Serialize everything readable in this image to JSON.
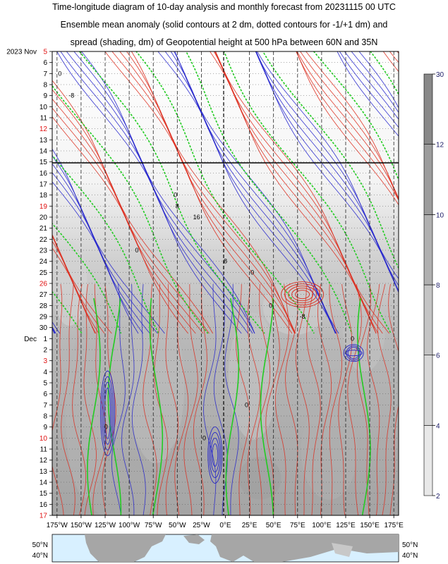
{
  "title": {
    "line1": "Time-longitude diagram of 10-day analysis and monthly forecast from 20231115 00 UTC",
    "line2": "Ensemble mean anomaly (solid contours at 2 dm, dotted contours for -1/+1 dm) and",
    "line3": "spread (shading, dm) of Geopotential height at 500 hPa between 60N and 35N"
  },
  "chart_data": {
    "type": "heatmap",
    "variable": "Geopotential height at 500 hPa",
    "init_time": "20231115 00 UTC",
    "year_month_label": "2023 Nov",
    "x_ticks": [
      "175°W",
      "150°W",
      "125°W",
      "100°W",
      "75°W",
      "50°W",
      "25°W",
      "0°E",
      "25°E",
      "50°E",
      "75°E",
      "100°E",
      "125°E",
      "150°E",
      "175°E"
    ],
    "x_values": [
      -175,
      -150,
      -125,
      -100,
      -75,
      -50,
      -25,
      0,
      25,
      50,
      75,
      100,
      125,
      150,
      175
    ],
    "xlim": [
      -180,
      180
    ],
    "y_dates": [
      {
        "label": "5",
        "red": true,
        "month": "2023 Nov"
      },
      {
        "label": "6",
        "red": false
      },
      {
        "label": "7",
        "red": false
      },
      {
        "label": "8",
        "red": false
      },
      {
        "label": "9",
        "red": false
      },
      {
        "label": "10",
        "red": false
      },
      {
        "label": "11",
        "red": false
      },
      {
        "label": "12",
        "red": true
      },
      {
        "label": "13",
        "red": false
      },
      {
        "label": "14",
        "red": false
      },
      {
        "label": "15",
        "red": false
      },
      {
        "label": "16",
        "red": false
      },
      {
        "label": "17",
        "red": false
      },
      {
        "label": "18",
        "red": false
      },
      {
        "label": "19",
        "red": true
      },
      {
        "label": "20",
        "red": false
      },
      {
        "label": "21",
        "red": false
      },
      {
        "label": "22",
        "red": false
      },
      {
        "label": "23",
        "red": false
      },
      {
        "label": "24",
        "red": false
      },
      {
        "label": "25",
        "red": false
      },
      {
        "label": "26",
        "red": true
      },
      {
        "label": "27",
        "red": false
      },
      {
        "label": "28",
        "red": false
      },
      {
        "label": "29",
        "red": false
      },
      {
        "label": "30",
        "red": false
      },
      {
        "label": "1",
        "red": false,
        "month": "Dec"
      },
      {
        "label": "2",
        "red": false
      },
      {
        "label": "3",
        "red": true
      },
      {
        "label": "4",
        "red": false
      },
      {
        "label": "5",
        "red": false
      },
      {
        "label": "6",
        "red": false
      },
      {
        "label": "7",
        "red": false
      },
      {
        "label": "8",
        "red": false
      },
      {
        "label": "9",
        "red": false
      },
      {
        "label": "10",
        "red": true
      },
      {
        "label": "11",
        "red": false
      },
      {
        "label": "12",
        "red": false
      },
      {
        "label": "13",
        "red": false
      },
      {
        "label": "14",
        "red": false
      },
      {
        "label": "15",
        "red": false
      },
      {
        "label": "16",
        "red": false
      },
      {
        "label": "17",
        "red": true
      }
    ],
    "analysis_forecast_boundary": "15",
    "colorbar": {
      "ticks": [
        2,
        4,
        6,
        8,
        10,
        12,
        30
      ],
      "colors": [
        "#e8e8e8",
        "#d6d6d6",
        "#c4c4c4",
        "#b0b0b0",
        "#9c9c9c",
        "#888888"
      ]
    },
    "contour_colors": {
      "positive": "#dd2a1b",
      "negative": "#2222cc",
      "zero": "#22cc22"
    },
    "contour_labels": [
      "0",
      "-8",
      "8",
      "16",
      "-16"
    ],
    "map_latitudes": [
      "50°N",
      "40°N"
    ],
    "grid": true
  }
}
